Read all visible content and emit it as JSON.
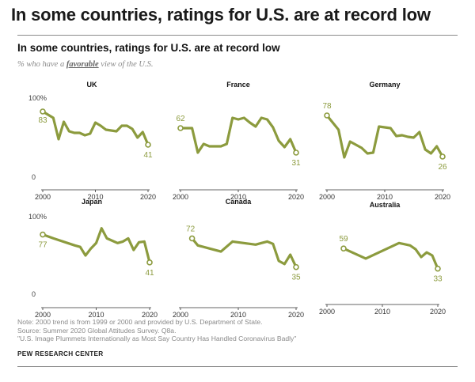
{
  "headline": "In some countries, ratings for U.S. are at record low",
  "chart_title": "In some countries, ratings for U.S. are at record low",
  "subtitle_pre": "% who have a ",
  "subtitle_emph": "favorable",
  "subtitle_post": " view of the U.S.",
  "notes": [
    "Note: 2000 trend is from 1999 or 2000 and provided by U.S. Department of State.",
    "Source: Summer 2020 Global Attitudes Survey. Q8a.",
    "\"U.S. Image Plummets Internationally as Most Say Country Has Handled Coronavirus Badly\""
  ],
  "source_org": "PEW RESEARCH CENTER",
  "colors": {
    "line": "#8c9b3e",
    "label": "#8c9b3e",
    "axis": "#333333"
  },
  "chart_data": [
    {
      "type": "line",
      "title": "UK",
      "xlim": [
        2000,
        2020
      ],
      "ylim": [
        0,
        100
      ],
      "xticks": [
        "2000",
        "2010",
        "2020"
      ],
      "yticks": [
        "100%",
        "0"
      ],
      "x": [
        2000,
        2002,
        2003,
        2004,
        2005,
        2006,
        2007,
        2008,
        2009,
        2010,
        2011,
        2012,
        2013,
        2014,
        2015,
        2016,
        2017,
        2018,
        2019,
        2020
      ],
      "y": [
        83,
        75,
        48,
        70,
        58,
        56,
        56,
        53,
        55,
        69,
        65,
        60,
        59,
        58,
        65,
        65,
        61,
        50,
        57,
        41
      ],
      "start_label": "83",
      "end_label": "41"
    },
    {
      "type": "line",
      "title": "France",
      "xlim": [
        2000,
        2020
      ],
      "ylim": [
        0,
        100
      ],
      "xticks": [
        "2000",
        "2010",
        "2020"
      ],
      "yticks": [],
      "x": [
        2000,
        2002,
        2003,
        2004,
        2005,
        2006,
        2007,
        2008,
        2009,
        2010,
        2011,
        2012,
        2013,
        2014,
        2015,
        2016,
        2017,
        2018,
        2019,
        2020
      ],
      "y": [
        62,
        62,
        31,
        42,
        39,
        39,
        39,
        42,
        75,
        73,
        75,
        69,
        64,
        75,
        73,
        63,
        46,
        38,
        48,
        31
      ],
      "start_label": "62",
      "end_label": "31"
    },
    {
      "type": "line",
      "title": "Germany",
      "xlim": [
        2000,
        2020
      ],
      "ylim": [
        0,
        100
      ],
      "xticks": [
        "2000",
        "2010",
        "2020"
      ],
      "yticks": [],
      "x": [
        2000,
        2002,
        2003,
        2004,
        2005,
        2006,
        2007,
        2008,
        2009,
        2010,
        2011,
        2012,
        2013,
        2014,
        2015,
        2016,
        2017,
        2018,
        2019,
        2020
      ],
      "y": [
        78,
        60,
        25,
        45,
        41,
        37,
        30,
        31,
        64,
        63,
        62,
        52,
        53,
        51,
        50,
        57,
        35,
        30,
        39,
        26
      ],
      "start_label": "78",
      "end_label": "26"
    },
    {
      "type": "line",
      "title": "Japan",
      "xlim": [
        2000,
        2020
      ],
      "ylim": [
        0,
        100
      ],
      "xticks": [
        "2000",
        "2010",
        "2020"
      ],
      "yticks": [
        "100%",
        "0"
      ],
      "x": [
        2000,
        2002,
        2006,
        2007,
        2008,
        2009,
        2010,
        2011,
        2012,
        2013,
        2014,
        2015,
        2016,
        2017,
        2018,
        2019,
        2020
      ],
      "y": [
        77,
        72,
        63,
        61,
        50,
        59,
        66,
        85,
        72,
        69,
        66,
        68,
        72,
        57,
        67,
        68,
        41
      ],
      "start_label": "77",
      "end_label": "41"
    },
    {
      "type": "line",
      "title": "Canada",
      "xlim": [
        2000,
        2020
      ],
      "ylim": [
        0,
        100
      ],
      "xticks": [
        "2000",
        "2010",
        "2020"
      ],
      "yticks": [],
      "x": [
        2002,
        2003,
        2005,
        2007,
        2009,
        2013,
        2014,
        2015,
        2016,
        2017,
        2018,
        2019,
        2020
      ],
      "y": [
        72,
        63,
        59,
        55,
        68,
        64,
        66,
        68,
        65,
        43,
        39,
        51,
        35
      ],
      "start_label": "72",
      "end_label": "35"
    },
    {
      "type": "line",
      "title": "Australia",
      "xlim": [
        2000,
        2020
      ],
      "ylim": [
        0,
        100
      ],
      "xticks": [
        "2000",
        "2010",
        "2020"
      ],
      "yticks": [],
      "x": [
        2003,
        2007,
        2013,
        2015,
        2016,
        2017,
        2018,
        2019,
        2020
      ],
      "y": [
        59,
        46,
        66,
        63,
        58,
        48,
        54,
        50,
        33
      ],
      "start_label": "59",
      "end_label": "33"
    }
  ]
}
